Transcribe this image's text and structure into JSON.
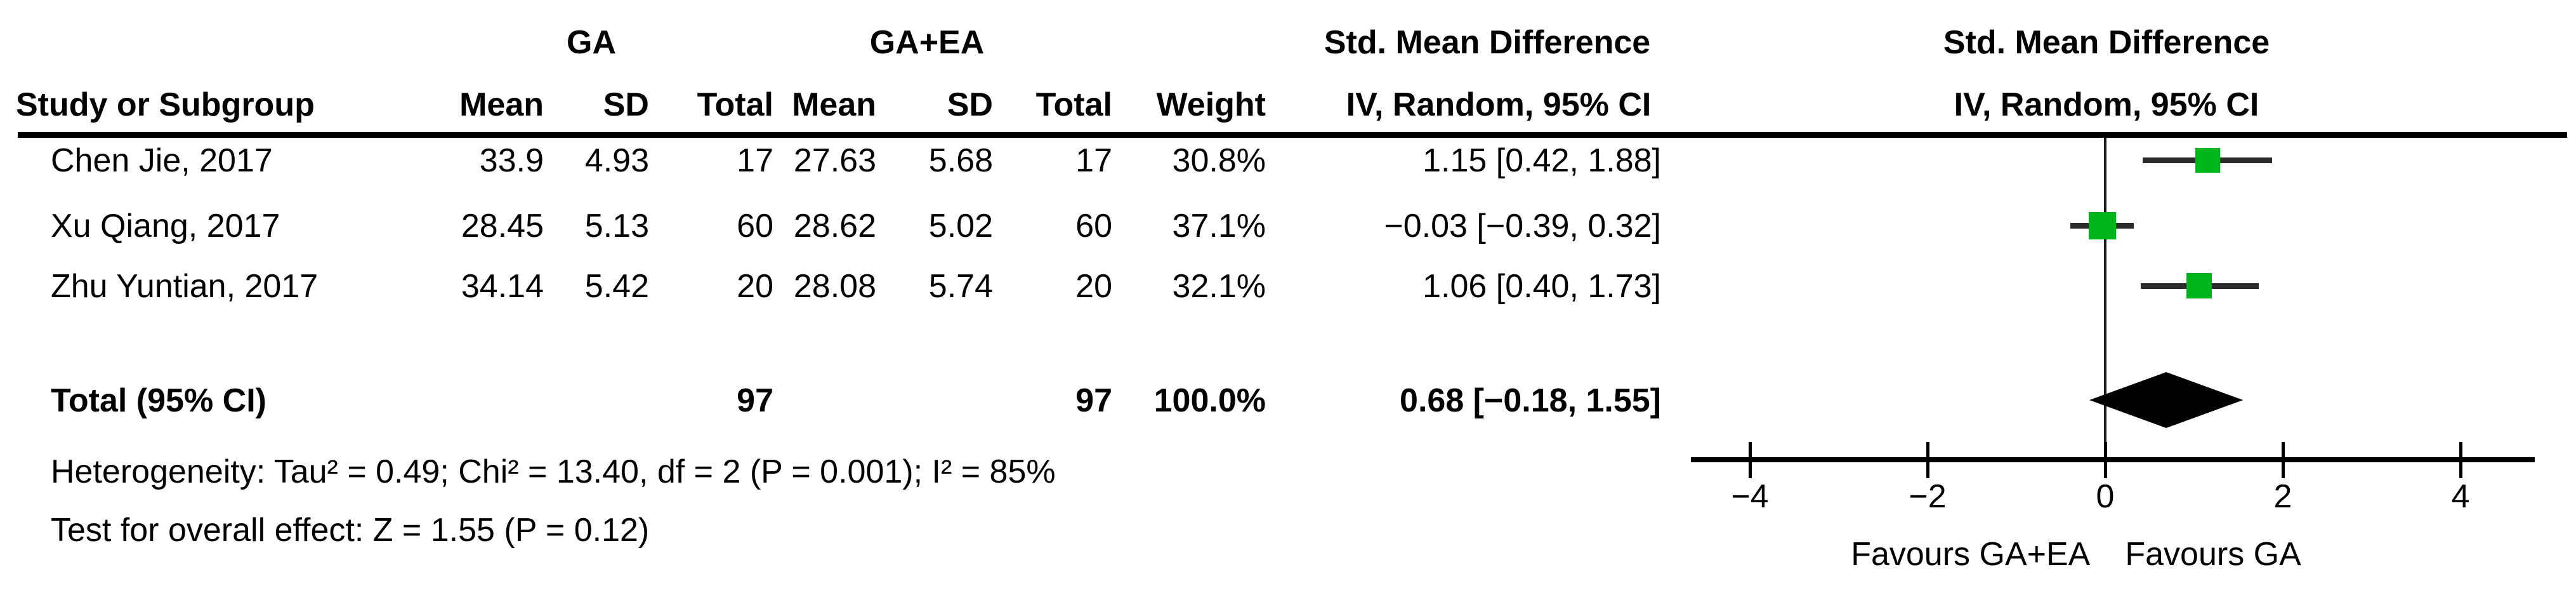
{
  "header": {
    "study": "Study or Subgroup",
    "g1": {
      "label": "GA",
      "mean": "Mean",
      "sd": "SD",
      "total": "Total"
    },
    "g2": {
      "label": "GA+EA",
      "mean": "Mean",
      "sd": "SD",
      "total": "Total"
    },
    "weight": "Weight",
    "smd": {
      "line1": "Std. Mean Difference",
      "line2": "IV, Random, 95% CI"
    },
    "plot": {
      "line1": "Std. Mean Difference",
      "line2": "IV, Random, 95% CI"
    }
  },
  "rows": [
    {
      "study": "Chen Jie, 2017",
      "mean1": "33.9",
      "sd1": "4.93",
      "total1": "17",
      "mean2": "27.63",
      "sd2": "5.68",
      "total2": "17",
      "weight": "30.8%",
      "smd": "1.15 [0.42, 1.88]"
    },
    {
      "study": "Xu Qiang, 2017",
      "mean1": "28.45",
      "sd1": "5.13",
      "total1": "60",
      "mean2": "28.62",
      "sd2": "5.02",
      "total2": "60",
      "weight": "37.1%",
      "smd": "−0.03 [−0.39, 0.32]"
    },
    {
      "study": "Zhu Yuntian, 2017",
      "mean1": "34.14",
      "sd1": "5.42",
      "total1": "20",
      "mean2": "28.08",
      "sd2": "5.74",
      "total2": "20",
      "weight": "32.1%",
      "smd": "1.06 [0.40, 1.73]"
    }
  ],
  "total_row": {
    "label": "Total (95% CI)",
    "total1": "97",
    "total2": "97",
    "weight": "100.0%",
    "smd": "0.68 [−0.18, 1.55]"
  },
  "footer": {
    "heterogeneity": "Heterogeneity: Tau² = 0.49; Chi² = 13.40, df = 2 (P = 0.001); I² = 85%",
    "overall_effect": "Test for overall effect: Z = 1.55 (P = 0.12)"
  },
  "chart_data": {
    "type": "forest",
    "title": "Std. Mean Difference, IV, Random, 95% CI",
    "x_axis": {
      "ticks": [
        -4,
        -2,
        0,
        2,
        4
      ],
      "tick_labels": [
        "−4",
        "−2",
        "0",
        "2",
        "4"
      ],
      "range": [
        -4.7,
        4.8
      ],
      "label_left": "Favours GA+EA",
      "label_right": "Favours GA"
    },
    "studies": [
      {
        "name": "Chen Jie, 2017",
        "est": 1.15,
        "lo": 0.42,
        "hi": 1.88,
        "weight": 30.8
      },
      {
        "name": "Xu Qiang, 2017",
        "est": -0.03,
        "lo": -0.39,
        "hi": 0.32,
        "weight": 37.1
      },
      {
        "name": "Zhu Yuntian, 2017",
        "est": 1.06,
        "lo": 0.4,
        "hi": 1.73,
        "weight": 32.1
      }
    ],
    "total": {
      "est": 0.68,
      "lo": -0.18,
      "hi": 1.55
    },
    "colors": {
      "marker": "#00B41C",
      "ci_line": "#2b2b2b",
      "diamond": "#000000",
      "axis": "#000000"
    }
  }
}
